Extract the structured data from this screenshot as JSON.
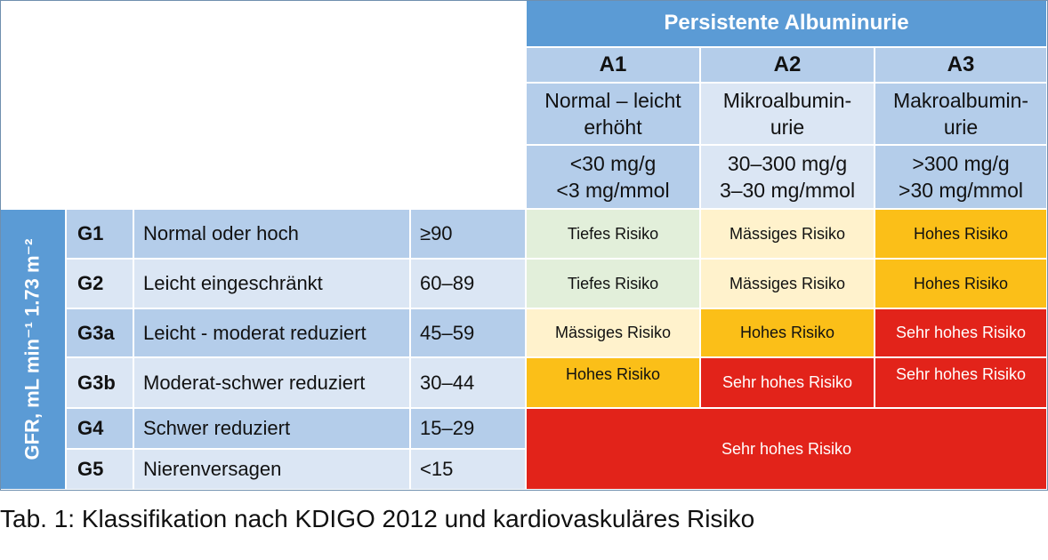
{
  "header": {
    "title": "Persistente Albuminurie",
    "columns": [
      {
        "code": "A1",
        "desc": "Normal – leicht erhöht",
        "range1": "<30 mg/g",
        "range2": "<3 mg/mmol"
      },
      {
        "code": "A2",
        "desc": "Mikroalbumin-urie",
        "range1": "30–300 mg/g",
        "range2": "3–30 mg/mmol"
      },
      {
        "code": "A3",
        "desc": "Makroalbumin-urie",
        "range1": ">300 mg/g",
        "range2": ">30 mg/mmol"
      }
    ]
  },
  "gfr_label": "GFR, mL min⁻¹ 1.73 m⁻²",
  "rows": [
    {
      "code": "G1",
      "desc": "Normal oder hoch",
      "range": "≥90",
      "risks": [
        "Tiefes Risiko",
        "Mässiges Risiko",
        "Hohes Risiko"
      ]
    },
    {
      "code": "G2",
      "desc": "Leicht eingeschränkt",
      "range": "60–89",
      "risks": [
        "Tiefes Risiko",
        "Mässiges Risiko",
        "Hohes Risiko"
      ]
    },
    {
      "code": "G3a",
      "desc": "Leicht - moderat reduziert",
      "range": "45–59",
      "risks": [
        "Mässiges Risiko",
        "Hohes Risiko",
        "Sehr hohes Risiko"
      ]
    },
    {
      "code": "G3b",
      "desc": "Moderat-schwer reduziert",
      "range": "30–44",
      "risks": [
        "Hohes Risiko",
        "Sehr hohes Risiko",
        "Sehr hohes Risiko"
      ]
    },
    {
      "code": "G4",
      "desc": "Schwer reduziert",
      "range": "15–29"
    },
    {
      "code": "G5",
      "desc": "Nierenversagen",
      "range": "<15"
    }
  ],
  "merged_risk": "Sehr hohes Risiko",
  "caption": "Tab. 1: Klassifikation nach KDIGO 2012 und kardiovaskuläres Risiko",
  "colors": {
    "header_blue": "#5b9bd5",
    "light_blue": "#dbe6f4",
    "mid_blue": "#b4cdea",
    "low_risk": "#e2efda",
    "moderate_risk": "#fff2cc",
    "high_risk": "#fbbf18",
    "very_high_risk": "#e2231a"
  }
}
